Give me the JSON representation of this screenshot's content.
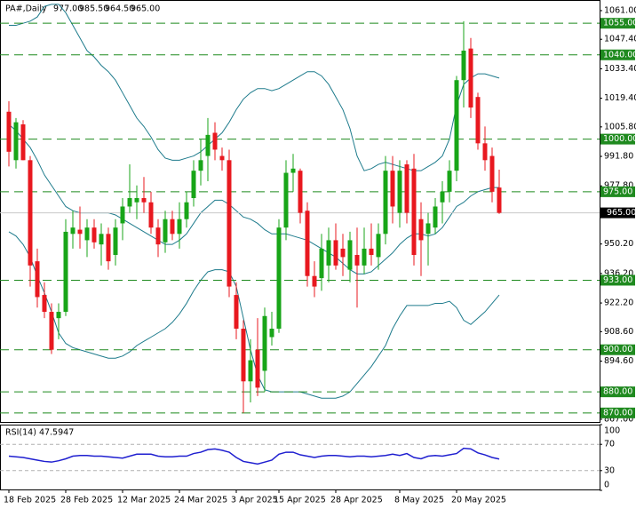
{
  "chart_data": {
    "type": "candlestick",
    "title": "PA#,Daily",
    "header": [
      {
        "value": 977,
        "label": "977.00"
      },
      {
        "value": 985.5,
        "label": "985.50"
      },
      {
        "value": 964.5,
        "label": "964.50"
      },
      {
        "value": 965,
        "label": "965.00"
      }
    ],
    "categories": [
      "18 Feb 2025",
      null,
      null,
      null,
      null,
      null,
      null,
      null,
      "28 Feb 2025",
      null,
      null,
      null,
      null,
      null,
      null,
      null,
      "12 Mar 2025",
      null,
      null,
      null,
      null,
      null,
      null,
      null,
      "24 Mar 2025",
      null,
      null,
      null,
      null,
      null,
      null,
      null,
      "3 Apr 2025",
      null,
      null,
      null,
      null,
      null,
      "15 Apr 2025",
      null,
      null,
      null,
      null,
      null,
      null,
      null,
      "28 Apr 2025",
      null,
      null,
      null,
      null,
      null,
      null,
      null,
      null,
      "8 May 2025",
      null,
      null,
      null,
      null,
      null,
      null,
      null,
      "20 May 2025",
      null,
      null,
      null,
      null,
      null,
      null
    ],
    "open": [
      1013,
      990,
      1007,
      990,
      942,
      926,
      918,
      915,
      918,
      955,
      957,
      952,
      958,
      950,
      955,
      945,
      960,
      968,
      970,
      972,
      970,
      958,
      951,
      962,
      955,
      962,
      972,
      985,
      992,
      1003,
      992,
      990,
      926,
      910,
      885,
      900,
      890,
      906,
      910,
      958,
      984,
      985,
      966,
      935,
      934,
      940,
      952,
      948,
      938,
      945,
      940,
      948,
      944,
      955,
      985,
      965,
      988,
      986,
      962,
      955,
      958,
      970,
      975,
      985,
      1028,
      1043,
      1020,
      998,
      992,
      977
    ],
    "high": [
      1018,
      1010,
      1009,
      992,
      948,
      932,
      922,
      922,
      962,
      966,
      968,
      962,
      962,
      960,
      958,
      962,
      972,
      988,
      978,
      982,
      975,
      962,
      966,
      966,
      970,
      975,
      990,
      1000,
      1010,
      1008,
      996,
      995,
      932,
      914,
      905,
      915,
      920,
      918,
      962,
      990,
      993,
      986,
      970,
      942,
      955,
      958,
      960,
      955,
      956,
      958,
      958,
      960,
      960,
      992,
      992,
      990,
      990,
      993,
      970,
      965,
      972,
      980,
      990,
      1030,
      1056,
      1048,
      1022,
      1006,
      996,
      985.5
    ],
    "low": [
      987,
      986,
      990,
      930,
      920,
      915,
      898,
      905,
      916,
      948,
      948,
      944,
      948,
      940,
      938,
      940,
      952,
      965,
      962,
      965,
      955,
      944,
      946,
      952,
      948,
      958,
      968,
      978,
      980,
      990,
      985,
      925,
      905,
      870,
      875,
      878,
      880,
      902,
      908,
      952,
      975,
      960,
      930,
      925,
      928,
      932,
      938,
      935,
      932,
      920,
      936,
      940,
      938,
      950,
      960,
      958,
      960,
      940,
      935,
      940,
      955,
      960,
      970,
      980,
      1015,
      1010,
      995,
      985,
      970,
      964.5
    ],
    "close": [
      994,
      1008,
      990,
      940,
      925,
      918,
      900,
      918,
      956,
      958,
      955,
      958,
      951,
      955,
      942,
      958,
      968,
      972,
      972,
      970,
      958,
      950,
      962,
      955,
      962,
      970,
      985,
      990,
      1002,
      995,
      990,
      930,
      910,
      885,
      895,
      882,
      916,
      910,
      958,
      984,
      986,
      965,
      935,
      930,
      948,
      952,
      940,
      944,
      952,
      940,
      948,
      945,
      955,
      985,
      968,
      985,
      965,
      945,
      952,
      960,
      968,
      975,
      985,
      1028,
      1042,
      1015,
      998,
      990,
      975,
      965
    ],
    "bull_color": "#18a518",
    "bear_color": "#e8181f",
    "bands": {
      "color": "#1e7b8c",
      "upper": [
        1054,
        1054,
        1055,
        1056,
        1058,
        1063,
        1064,
        1064,
        1060,
        1054,
        1048,
        1042,
        1039,
        1035,
        1032,
        1028,
        1022,
        1016,
        1010,
        1006,
        1001,
        995,
        991,
        990,
        990,
        991,
        992,
        994,
        997,
        1000,
        1003,
        1008,
        1014,
        1019,
        1022,
        1024,
        1024,
        1023,
        1024,
        1026,
        1028,
        1030,
        1032,
        1032,
        1030,
        1026,
        1020,
        1014,
        1005,
        992,
        985,
        986,
        988,
        989,
        988,
        987,
        986,
        985,
        985,
        987,
        989,
        992,
        1000,
        1016,
        1026,
        1029,
        1031,
        1031,
        1030,
        1029
      ],
      "middle": [
        1007,
        1004,
        1000,
        996,
        990,
        983,
        978,
        973,
        968,
        966,
        965,
        965,
        965,
        965,
        965,
        964,
        962,
        960,
        958,
        956,
        954,
        952,
        950,
        950,
        952,
        955,
        960,
        965,
        968,
        971,
        971,
        969,
        966,
        963,
        962,
        960,
        957,
        955,
        955,
        955,
        954,
        953,
        952,
        950,
        948,
        946,
        944,
        941,
        938,
        936,
        936,
        937,
        940,
        943,
        946,
        950,
        953,
        955,
        955,
        954,
        955,
        958,
        963,
        968,
        970,
        973,
        975,
        976,
        977,
        977
      ],
      "lower": [
        956,
        954,
        950,
        944,
        935,
        927,
        918,
        908,
        903,
        901,
        900,
        899,
        898,
        897,
        896,
        896,
        897,
        899,
        902,
        904,
        906,
        908,
        910,
        913,
        917,
        922,
        928,
        933,
        937,
        938,
        938,
        937,
        930,
        915,
        900,
        888,
        881,
        880,
        880,
        880,
        880,
        880,
        879,
        878,
        877,
        877,
        877,
        878,
        880,
        884,
        888,
        892,
        897,
        902,
        910,
        916,
        921,
        921,
        921,
        921,
        922,
        922,
        923,
        920,
        914,
        912,
        915,
        918,
        922,
        926
      ]
    },
    "levels": [
      {
        "value": 1055,
        "label": "1055.00"
      },
      {
        "value": 1040,
        "label": "1040.00"
      },
      {
        "value": 1000,
        "label": "1000.00"
      },
      {
        "value": 975,
        "label": "975.00"
      },
      {
        "value": 933,
        "label": "933.00"
      },
      {
        "value": 900,
        "label": "900.00"
      },
      {
        "value": 880,
        "label": "880.00"
      },
      {
        "value": 870,
        "label": "870.00"
      }
    ],
    "level_color": "#1f8a1f",
    "last_price": {
      "value": 965,
      "label": "965.00"
    },
    "ylim": [
      865.3,
      1065.2
    ],
    "yticks": [
      {
        "value": 1061,
        "label": "1061.00"
      },
      {
        "value": 1047.4,
        "label": "1047.40"
      },
      {
        "value": 1033.4,
        "label": "1033.40"
      },
      {
        "value": 1019.4,
        "label": "1019.40"
      },
      {
        "value": 1005.8,
        "label": "1005.80"
      },
      {
        "value": 991.8,
        "label": "991.80"
      },
      {
        "value": 977.8,
        "label": "977.80"
      },
      {
        "value": 964.2,
        "label": "964.20"
      },
      {
        "value": 950.2,
        "label": "950.20"
      },
      {
        "value": 936.2,
        "label": "936.20"
      },
      {
        "value": 922.2,
        "label": "922.20"
      },
      {
        "value": 908.6,
        "label": "908.60"
      },
      {
        "value": 894.6,
        "label": "894.60"
      },
      {
        "value": 880.6,
        "label": "880.60"
      },
      {
        "value": 867,
        "label": "867.00"
      }
    ],
    "indicator": {
      "type": "line",
      "title": "RSI(14) 47.5947",
      "color": "#1f1fd0",
      "values": [
        52,
        51,
        50,
        48,
        46,
        44,
        43,
        45,
        48,
        52,
        53,
        53,
        52,
        52,
        51,
        50,
        49,
        52,
        55,
        55,
        55,
        52,
        51,
        51,
        52,
        52,
        56,
        58,
        62,
        63,
        61,
        58,
        50,
        44,
        42,
        40,
        43,
        46,
        55,
        58,
        58,
        54,
        52,
        50,
        52,
        53,
        53,
        52,
        51,
        52,
        52,
        51,
        52,
        53,
        55,
        53,
        56,
        50,
        48,
        52,
        53,
        52,
        54,
        56,
        64,
        63,
        57,
        54,
        50,
        47.5947
      ],
      "ylim": [
        0,
        100
      ],
      "yticks": [
        100,
        70,
        30,
        0
      ],
      "levels": [
        70,
        30
      ]
    }
  }
}
